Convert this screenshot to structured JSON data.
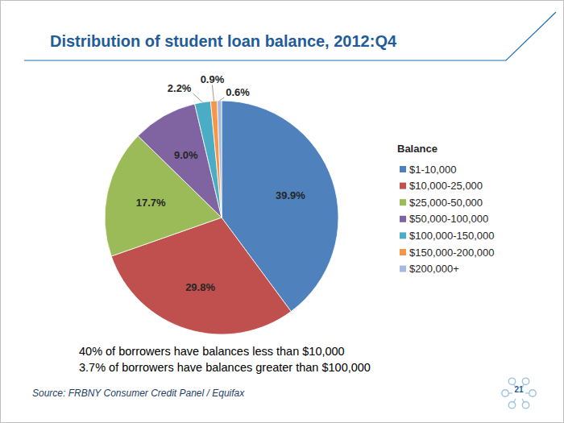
{
  "chart_data": {
    "type": "pie",
    "title": "Distribution of student loan balance, 2012:Q4",
    "legend_title": "Balance",
    "categories": [
      "$1-10,000",
      "$10,000-25,000",
      "$25,000-50,000",
      "$50,000-100,000",
      "$100,000-150,000",
      "$150,000-200,000",
      "$200,000+"
    ],
    "values": [
      39.9,
      29.8,
      17.7,
      9.0,
      2.2,
      0.9,
      0.6
    ],
    "value_labels": [
      "39.9%",
      "29.8%",
      "17.7%",
      "9.0%",
      "2.2%",
      "0.9%",
      "0.6%"
    ],
    "colors": [
      "#4f81bd",
      "#c0504d",
      "#9bbb59",
      "#8064a2",
      "#4bacc6",
      "#f79646",
      "#a7b9dc"
    ],
    "data_labels": true,
    "legend": "right",
    "annotations": [
      "40% of borrowers have balances less than $10,000",
      "3.7% of borrowers have balances greater than $100,000"
    ],
    "source": "Source: FRBNY Consumer Credit Panel / Equifax",
    "page_number": "21"
  }
}
